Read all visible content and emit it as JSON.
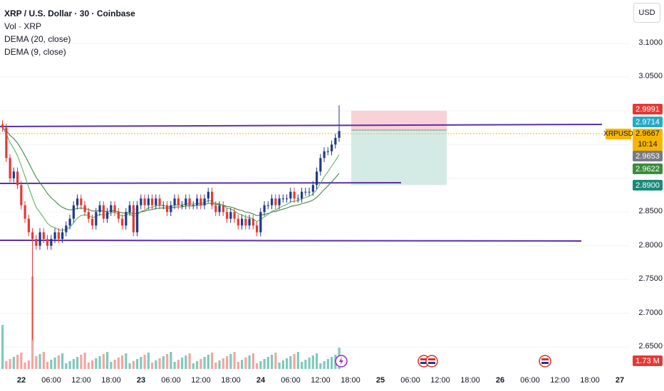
{
  "legend": {
    "title": "XRP / U.S. Dollar · 30 · Coinbase",
    "vol": "Vol · XRP",
    "dema20": "DEMA (20, close)",
    "dema9": "DEMA (9, close)"
  },
  "currency_button": "USD",
  "price_axis": [
    "3.1000",
    "3.0500",
    "2.8500",
    "2.8000",
    "2.7500",
    "2.7000",
    "2.6500"
  ],
  "time_axis": [
    {
      "label": "22",
      "bold": true
    },
    {
      "label": "06:00",
      "bold": false
    },
    {
      "label": "12:00",
      "bold": false
    },
    {
      "label": "18:00",
      "bold": false
    },
    {
      "label": "23",
      "bold": true
    },
    {
      "label": "06:00",
      "bold": false
    },
    {
      "label": "12:00",
      "bold": false
    },
    {
      "label": "18:00",
      "bold": false
    },
    {
      "label": "24",
      "bold": true
    },
    {
      "label": "06:00",
      "bold": false
    },
    {
      "label": "12:00",
      "bold": false
    },
    {
      "label": "18:00",
      "bold": false
    },
    {
      "label": "25",
      "bold": true
    },
    {
      "label": "06:00",
      "bold": false
    },
    {
      "label": "12:00",
      "bold": false
    },
    {
      "label": "18:00",
      "bold": false
    },
    {
      "label": "26",
      "bold": true
    },
    {
      "label": "06:00",
      "bold": false
    },
    {
      "label": "12:00",
      "bold": false
    },
    {
      "label": "18:00",
      "bold": false
    },
    {
      "label": "27",
      "bold": true
    }
  ],
  "price_tags": {
    "stop_loss": "2.9991",
    "entry": "2.9714",
    "symbol": "XRPUSD",
    "current_price": "2.9667",
    "countdown": "10:14",
    "dema20_value": "2.9653",
    "dema9_value": "2.9622",
    "take_profit": "2.8900",
    "volume": "1.73 M"
  },
  "colors": {
    "up": "#1e3a8a",
    "down": "#e53935",
    "dema": "#4caf50",
    "level_line": "#5b2fa8",
    "stop_zone": "#f8c9d0",
    "target_zone": "#cfe9e2",
    "vol_up": "#7fc9bd",
    "vol_down": "#f4a5a0"
  },
  "chart_data": {
    "type": "candlestick",
    "symbol": "XRPUSD",
    "interval": "30",
    "exchange": "Coinbase",
    "ylim": [
      2.62,
      3.13
    ],
    "horizontal_levels": [
      2.974,
      2.892,
      2.806
    ],
    "position": {
      "entry": 2.9714,
      "stop": 2.9991,
      "target": 2.89
    },
    "candles_close": [
      2.975,
      2.93,
      2.9,
      2.91,
      2.89,
      2.86,
      2.84,
      2.82,
      2.81,
      2.8,
      2.82,
      2.81,
      2.8,
      2.81,
      2.82,
      2.81,
      2.82,
      2.83,
      2.84,
      2.86,
      2.87,
      2.86,
      2.85,
      2.84,
      2.83,
      2.85,
      2.86,
      2.84,
      2.85,
      2.86,
      2.85,
      2.84,
      2.83,
      2.85,
      2.86,
      2.82,
      2.86,
      2.87,
      2.86,
      2.87,
      2.86,
      2.87,
      2.86,
      2.86,
      2.85,
      2.86,
      2.87,
      2.86,
      2.86,
      2.87,
      2.86,
      2.86,
      2.87,
      2.86,
      2.87,
      2.88,
      2.86,
      2.85,
      2.86,
      2.85,
      2.84,
      2.85,
      2.84,
      2.83,
      2.84,
      2.83,
      2.84,
      2.83,
      2.82,
      2.85,
      2.86,
      2.86,
      2.87,
      2.86,
      2.87,
      2.87,
      2.87,
      2.88,
      2.87,
      2.87,
      2.88,
      2.88,
      2.88,
      2.89,
      2.91,
      2.93,
      2.94,
      2.94,
      2.95,
      2.96,
      2.97
    ]
  }
}
